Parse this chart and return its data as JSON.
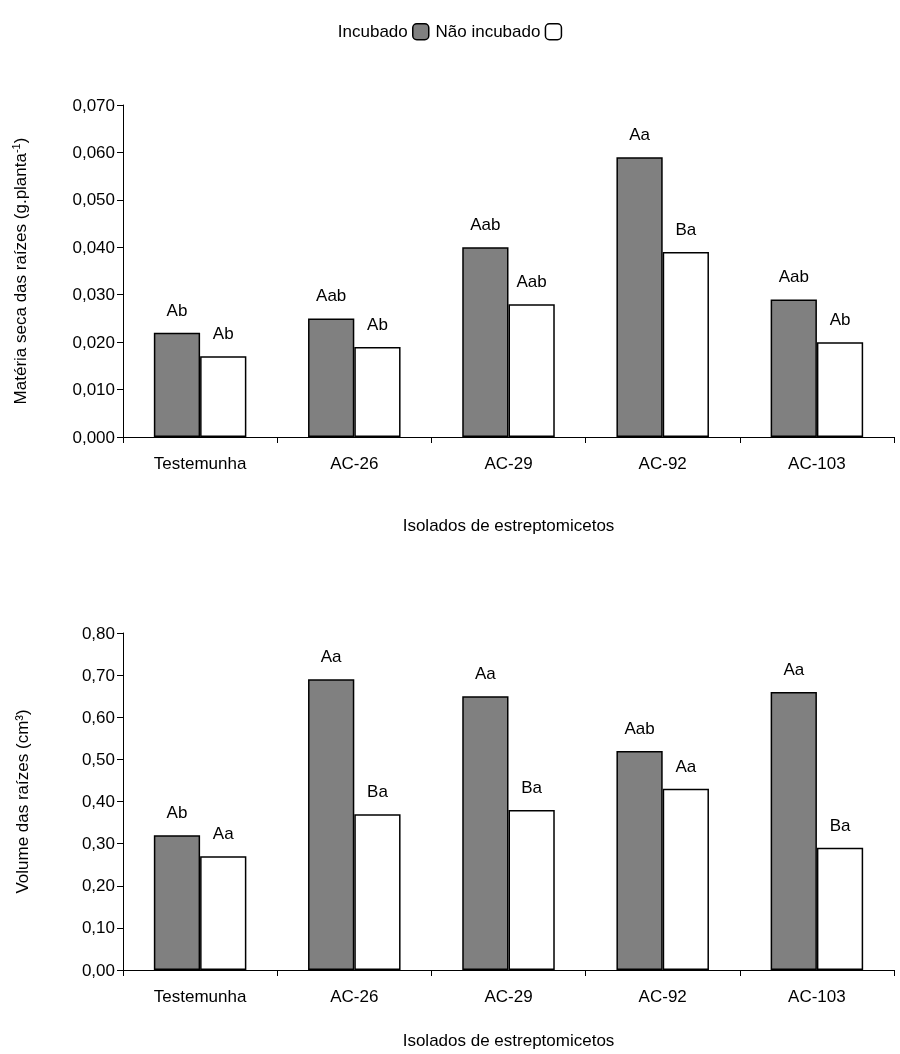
{
  "chart_data": [
    {
      "type": "bar",
      "categories": [
        "Testemunha",
        "AC-26",
        "AC-29",
        "AC-92",
        "AC-103"
      ],
      "xlabel": "Isolados de estreptomicetos",
      "ylabel": "Matéria seca das raízes (g.planta$^{-1}$)",
      "legend": "top",
      "series": [
        {
          "name": "Incubado",
          "color": "#808080",
          "values": [
            0.022,
            0.025,
            0.04,
            0.059,
            0.029
          ],
          "value_labels": [
            "Ab",
            "Aab",
            "Aab",
            "Aa",
            "Aab"
          ]
        },
        {
          "name": "Não incubado",
          "color": "#ffffff",
          "values": [
            0.017,
            0.019,
            0.028,
            0.039,
            0.02
          ],
          "value_labels": [
            "Ab",
            "Ab",
            "Aab",
            "Ba",
            "Ab"
          ]
        }
      ],
      "ylim": [
        0,
        0.07
      ],
      "yticks": [
        {
          "value": 0,
          "label": "0,000"
        },
        {
          "value": 0.01,
          "label": "0,010"
        },
        {
          "value": 0.02,
          "label": "0,020"
        },
        {
          "value": 0.03,
          "label": "0,030"
        },
        {
          "value": 0.04,
          "label": "0,040"
        },
        {
          "value": 0.05,
          "label": "0,050"
        },
        {
          "value": 0.06,
          "label": "0,060"
        },
        {
          "value": 0.07,
          "label": "0,070"
        }
      ],
      "grid": false
    },
    {
      "type": "bar",
      "categories": [
        "Testemunha",
        "AC-26",
        "AC-29",
        "AC-92",
        "AC-103"
      ],
      "xlabel": "Isolados de estreptomicetos",
      "ylabel": "Volume das raízes (cm³)",
      "series": [
        {
          "color": "#808080",
          "values": [
            0.32,
            0.69,
            0.65,
            0.52,
            0.66
          ],
          "value_labels": [
            "Ab",
            "Aa",
            "Aa",
            "Aab",
            "Aa"
          ]
        },
        {
          "color": "#ffffff",
          "values": [
            0.27,
            0.37,
            0.38,
            0.43,
            0.29
          ],
          "value_labels": [
            "Aa",
            "Ba",
            "Ba",
            "Aa",
            "Ba"
          ]
        }
      ],
      "ylim": [
        0,
        0.8
      ],
      "yticks": [
        {
          "value": 0,
          "label": "0,00"
        },
        {
          "value": 0.1,
          "label": "0,10"
        },
        {
          "value": 0.2,
          "label": "0,20"
        },
        {
          "value": 0.3,
          "label": "0,30"
        },
        {
          "value": 0.4,
          "label": "0,40"
        },
        {
          "value": 0.5,
          "label": "0,50"
        },
        {
          "value": 0.6,
          "label": "0,60"
        },
        {
          "value": 0.7,
          "label": "0,70"
        },
        {
          "value": 0.8,
          "label": "0,80"
        }
      ],
      "grid": false
    }
  ]
}
